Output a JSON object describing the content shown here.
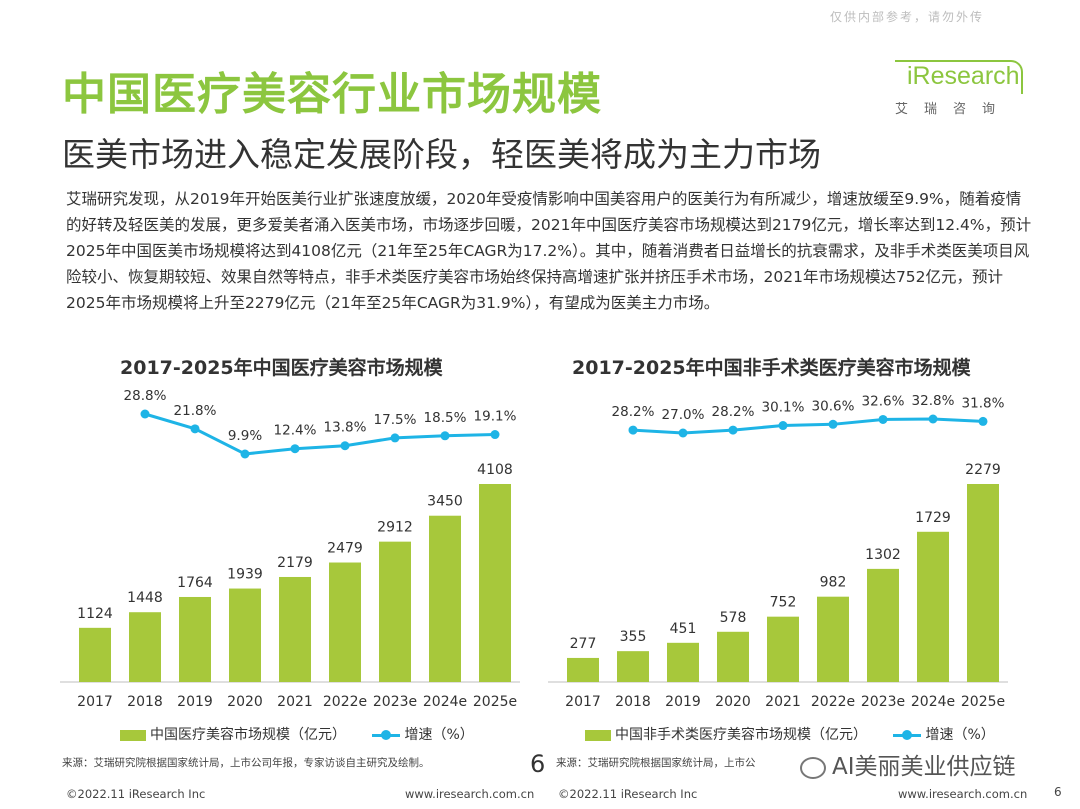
{
  "watermark": "仅供内部参考，请勿外传",
  "title": "中国医疗美容行业市场规模",
  "subtitle": "医美市场进入稳定发展阶段，轻医美将成为主力市场",
  "logo": {
    "name": "iResearch",
    "sub": "艾瑞咨询"
  },
  "paragraph": "艾瑞研究发现，从2019年开始医美行业扩张速度放缓，2020年受疫情影响中国美容用户的医美行为有所减少，增速放缓至9.9%，随着疫情的好转及轻医美的发展，更多爱美者涌入医美市场，市场逐步回暖，2021年中国医疗美容市场规模达到2179亿元，增长率达到12.4%，预计2025年中国医美市场规模将达到4108亿元（21年至25年CAGR为17.2%）。其中，随着消费者日益增长的抗衰需求，及非手术类医美项目风险较小、恢复期较短、效果自然等特点，非手术类医疗美容市场始终保持高增速扩张并挤压手术市场，2021年市场规模达752亿元，预计2025年市场规模将上升至2279亿元（21年至25年CAGR为31.9%），有望成为医美主力市场。",
  "chart_data": [
    {
      "type": "bar",
      "title": "2017-2025年中国医疗美容市场规模",
      "categories": [
        "2017",
        "2018",
        "2019",
        "2020",
        "2021",
        "2022e",
        "2023e",
        "2024e",
        "2025e"
      ],
      "series": [
        {
          "name": "中国医疗美容市场规模（亿元）",
          "type": "bar",
          "values": [
            1124,
            1448,
            1764,
            1939,
            2179,
            2479,
            2912,
            3450,
            4108
          ],
          "color": "#a7c83b"
        },
        {
          "name": "增速（%）",
          "type": "line",
          "values": [
            null,
            28.8,
            21.8,
            9.9,
            12.4,
            13.8,
            17.5,
            18.5,
            19.1
          ],
          "labels": [
            "",
            "28.8%",
            "21.8%",
            "9.9%",
            "12.4%",
            "13.8%",
            "17.5%",
            "18.5%",
            "19.1%"
          ],
          "color": "#1eb4e6"
        }
      ],
      "legend": [
        "中国医疗美容市场规模（亿元）",
        "增速（%）"
      ],
      "source": "来源：艾瑞研究院根据国家统计局，上市公司年报，专家访谈自主研究及绘制。"
    },
    {
      "type": "bar",
      "title": "2017-2025年中国非手术类医疗美容市场规模",
      "categories": [
        "2017",
        "2018",
        "2019",
        "2020",
        "2021",
        "2022e",
        "2023e",
        "2024e",
        "2025e"
      ],
      "series": [
        {
          "name": "中国非手术类医疗美容市场规模（亿元）",
          "type": "bar",
          "values": [
            277,
            355,
            451,
            578,
            752,
            982,
            1302,
            1729,
            2279
          ],
          "color": "#a7c83b"
        },
        {
          "name": "增速（%）",
          "type": "line",
          "values": [
            null,
            28.2,
            27.0,
            28.2,
            30.1,
            30.6,
            32.6,
            32.8,
            31.8
          ],
          "labels": [
            "",
            "28.2%",
            "27.0%",
            "28.2%",
            "30.1%",
            "30.6%",
            "32.6%",
            "32.8%",
            "31.8%"
          ],
          "color": "#1eb4e6"
        }
      ],
      "legend": [
        "中国非手术类医疗美容市场规模（亿元）",
        "增速（%）"
      ],
      "source": "来源：艾瑞研究院根据国家统计局，上市公"
    }
  ],
  "page_number_center": "6",
  "wechat": "AI美丽美业供应链",
  "footer": {
    "copy_left": "©2022.11 iResearch Inc",
    "url_left": "www.iresearch.com.cn",
    "copy_right": "©2022.11 iResearch Inc",
    "url_right": "www.iresearch.com.cn",
    "page": "6"
  }
}
